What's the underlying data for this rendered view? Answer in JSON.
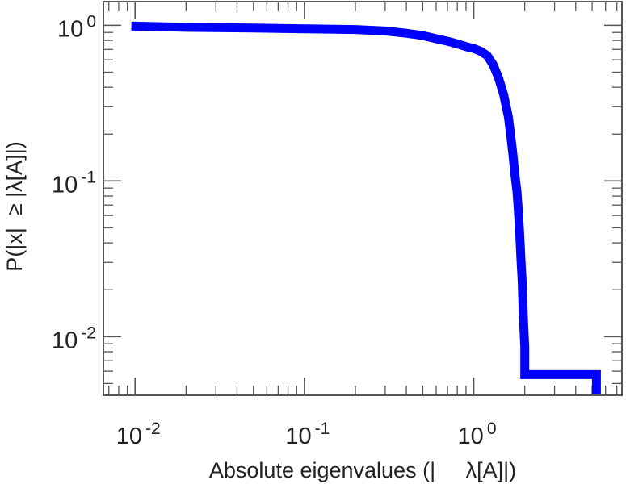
{
  "chart_data": {
    "type": "line",
    "title": "",
    "xlabel": "Absolute eigenvalues (|     λ[A]|)",
    "ylabel": "P(|x|  ≥ |λ[A]|)",
    "x_scale": "log",
    "y_scale": "log",
    "xlim": [
      0.0065,
      7.5
    ],
    "ylim": [
      0.0042,
      1.42
    ],
    "grid": false,
    "x_ticks": [
      {
        "value": 0.01,
        "base": "10",
        "exp": "-2"
      },
      {
        "value": 0.1,
        "base": "10",
        "exp": "-1"
      },
      {
        "value": 1,
        "base": "10",
        "exp": "0"
      }
    ],
    "y_ticks": [
      {
        "value": 1,
        "base": "10",
        "exp": "0"
      },
      {
        "value": 0.1,
        "base": "10",
        "exp": "-1"
      },
      {
        "value": 0.01,
        "base": "10",
        "exp": "-2"
      }
    ],
    "series": [
      {
        "color": "#0000ff",
        "x": [
          0.0095,
          0.02,
          0.05,
          0.1,
          0.2,
          0.3,
          0.4,
          0.5,
          0.6,
          0.7,
          0.8,
          0.9,
          1.0,
          1.1,
          1.2,
          1.3,
          1.4,
          1.5,
          1.6,
          1.65,
          1.7,
          1.75,
          1.8,
          1.83,
          1.86,
          1.88,
          1.9,
          1.93,
          1.96,
          2.0,
          2.0,
          2.6,
          3.5,
          4.5,
          5.3,
          5.3
        ],
        "y": [
          0.99,
          0.97,
          0.96,
          0.95,
          0.94,
          0.92,
          0.89,
          0.86,
          0.82,
          0.79,
          0.76,
          0.73,
          0.71,
          0.68,
          0.64,
          0.56,
          0.46,
          0.36,
          0.26,
          0.2,
          0.15,
          0.11,
          0.085,
          0.066,
          0.05,
          0.04,
          0.031,
          0.023,
          0.014,
          0.0085,
          0.0057,
          0.0057,
          0.0057,
          0.0057,
          0.0057,
          0.0043
        ]
      }
    ]
  }
}
